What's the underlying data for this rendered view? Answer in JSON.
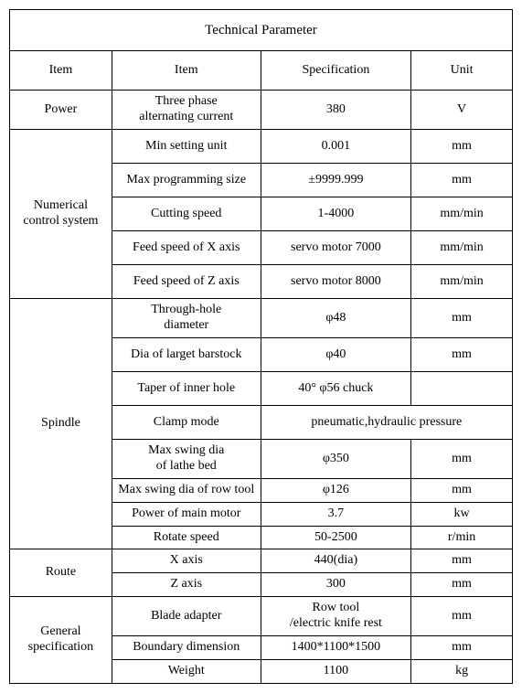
{
  "title": "Technical Parameter",
  "headers": {
    "c1": "Item",
    "c2": "Item",
    "c3": "Specification",
    "c4": "Unit"
  },
  "power": {
    "group": "Power",
    "item": "Three phase\nalternating current",
    "spec": "380",
    "unit": "V"
  },
  "ncs": {
    "group": "Numerical\ncontrol system",
    "rows": [
      {
        "item": "Min setting unit",
        "spec": "0.001",
        "unit": "mm"
      },
      {
        "item": "Max programming size",
        "spec": "±9999.999",
        "unit": "mm"
      },
      {
        "item": "Cutting speed",
        "spec": "1-4000",
        "unit": "mm/min"
      },
      {
        "item": "Feed speed of X axis",
        "spec": "servo motor 7000",
        "unit": "mm/min"
      },
      {
        "item": "Feed speed of Z axis",
        "spec": "servo motor 8000",
        "unit": "mm/min"
      }
    ]
  },
  "spindle": {
    "group": "Spindle",
    "rows": [
      {
        "item": "Through-hole\ndiameter",
        "spec": "φ48",
        "unit": "mm"
      },
      {
        "item": "Dia of larget barstock",
        "spec": "φ40",
        "unit": "mm"
      },
      {
        "item": "Taper of inner hole",
        "spec": "40°  φ56 chuck",
        "unit": ""
      },
      {
        "item": "Clamp mode",
        "spec": "pneumatic,hydraulic pressure",
        "unit": ""
      },
      {
        "item": "Max swing dia\nof lathe bed",
        "spec": "φ350",
        "unit": "mm"
      },
      {
        "item": "Max swing dia of row tool",
        "spec": "φ126",
        "unit": "mm"
      },
      {
        "item": "Power of main motor",
        "spec": "3.7",
        "unit": "kw"
      },
      {
        "item": "Rotate speed",
        "spec": "50-2500",
        "unit": "r/min"
      }
    ]
  },
  "route": {
    "group": "Route",
    "rows": [
      {
        "item": "X axis",
        "spec": "440(dia)",
        "unit": "mm"
      },
      {
        "item": "Z axis",
        "spec": "300",
        "unit": "mm"
      }
    ]
  },
  "general": {
    "group": "General\nspecification",
    "rows": [
      {
        "item": "Blade adapter",
        "spec": "Row tool\n/electric knife rest",
        "unit": "mm"
      },
      {
        "item": "Boundary dimension",
        "spec": "1400*1100*1500",
        "unit": "mm"
      },
      {
        "item": "Weight",
        "spec": "1100",
        "unit": "kg"
      }
    ]
  }
}
